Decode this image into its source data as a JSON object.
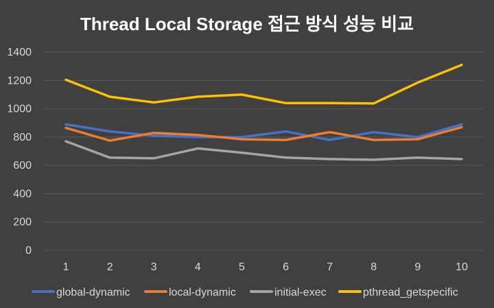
{
  "chart_data": {
    "type": "line",
    "title": "Thread Local Storage 접근 방식 성능 비교",
    "xlabel": "",
    "ylabel": "",
    "categories": [
      "1",
      "2",
      "3",
      "4",
      "5",
      "6",
      "7",
      "8",
      "9",
      "10"
    ],
    "y_ticks": [
      "0",
      "200",
      "400",
      "600",
      "800",
      "1000",
      "1200",
      "1400"
    ],
    "ylim": [
      0,
      1400
    ],
    "grid": true,
    "legend_position": "bottom",
    "series": [
      {
        "name": "global-dynamic",
        "color": "#4472c4",
        "values": [
          890,
          840,
          810,
          800,
          800,
          840,
          780,
          835,
          800,
          890
        ]
      },
      {
        "name": "local-dynamic",
        "color": "#ed7d31",
        "values": [
          865,
          775,
          830,
          815,
          785,
          780,
          835,
          780,
          785,
          870
        ]
      },
      {
        "name": "initial-exec",
        "color": "#a5a5a5",
        "values": [
          770,
          655,
          650,
          720,
          690,
          655,
          645,
          640,
          655,
          645
        ]
      },
      {
        "name": "pthread_getspecific",
        "color": "#ffc000",
        "values": [
          1205,
          1085,
          1045,
          1085,
          1100,
          1040,
          1040,
          1038,
          1185,
          1310
        ]
      }
    ]
  }
}
